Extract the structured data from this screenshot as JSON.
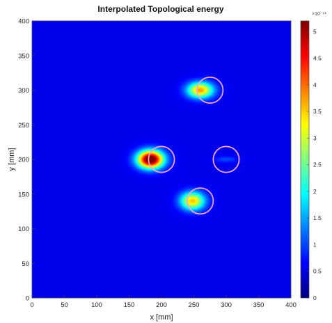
{
  "chart_data": {
    "type": "heatmap",
    "title": "Interpolated Topological energy",
    "xlabel": "x [mm]",
    "ylabel": "y [mm]",
    "xlim": [
      0,
      400
    ],
    "ylim": [
      0,
      400
    ],
    "x_ticks": [
      "0",
      "50",
      "100",
      "150",
      "200",
      "250",
      "300",
      "350",
      "400"
    ],
    "y_ticks": [
      "0",
      "50",
      "100",
      "150",
      "200",
      "250",
      "300",
      "350",
      "400"
    ],
    "colorbar": {
      "range": [
        0,
        5.2
      ],
      "ticks": [
        "0",
        "0.5",
        "1",
        "1.5",
        "2",
        "2.5",
        "3",
        "3.5",
        "4",
        "4.5",
        "5"
      ],
      "exponent_label": "×10⁻⁶¹",
      "colormap": "jet"
    },
    "background_level": 0.55,
    "hotspots": [
      {
        "x": 183,
        "y": 200,
        "sx": 14,
        "sy": 9,
        "peak": 5.2
      },
      {
        "x": 260,
        "y": 300,
        "sx": 14,
        "sy": 8,
        "peak": 3.2
      },
      {
        "x": 248,
        "y": 140,
        "sx": 13,
        "sy": 9,
        "peak": 3.0
      },
      {
        "x": 300,
        "y": 200,
        "sx": 12,
        "sy": 3,
        "peak": 0.5
      }
    ],
    "circles": [
      {
        "x": 275,
        "y": 300,
        "r": 20
      },
      {
        "x": 200,
        "y": 200,
        "r": 20
      },
      {
        "x": 300,
        "y": 200,
        "r": 20
      },
      {
        "x": 260,
        "y": 140,
        "r": 20
      }
    ],
    "colors": {
      "circle": "#f4a6c8",
      "frame": "#444444"
    }
  }
}
